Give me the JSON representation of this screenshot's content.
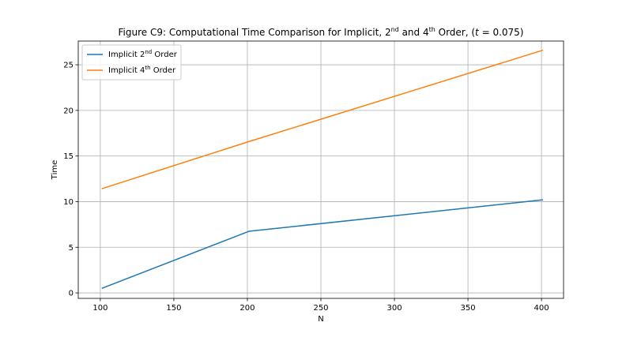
{
  "chart_data": {
    "type": "line",
    "title": {
      "prefix": "Figure C9: Computational Time Comparison for Implicit, 2",
      "sup1": "nd",
      "mid": " and 4",
      "sup2": "th",
      "suffix1": " Order, (",
      "t_var": "t",
      "suffix2": " = 0.075)"
    },
    "xlabel": "N",
    "ylabel": "Time",
    "xlim": [
      85,
      415
    ],
    "ylim": [
      -0.6,
      27.6
    ],
    "xticks": [
      100,
      150,
      200,
      250,
      300,
      350,
      400
    ],
    "yticks": [
      0,
      5,
      10,
      15,
      20,
      25
    ],
    "grid": true,
    "legend": "top-left",
    "series": [
      {
        "name_prefix": "Implicit 2",
        "name_sup": "nd",
        "name_suffix": " Order",
        "color": "#1f77b4",
        "x": [
          101,
          201,
          401
        ],
        "y": [
          0.5,
          6.75,
          10.2
        ]
      },
      {
        "name_prefix": "Implicit 4",
        "name_sup": "th",
        "name_suffix": " Order",
        "color": "#ff7f0e",
        "x": [
          101,
          201,
          401
        ],
        "y": [
          11.42,
          16.58,
          26.6
        ]
      }
    ]
  }
}
